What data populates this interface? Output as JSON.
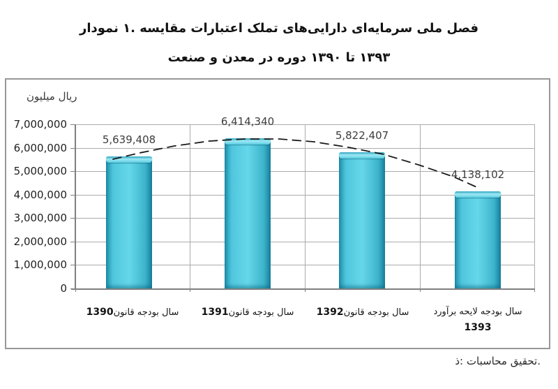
{
  "title": {
    "line1": "نمودار ۱. مقایسه اعتبارات تملک دارایی‌های سرمایه‌ای ملی فصل",
    "line2": "صنعت و معدن در دوره ۱۳۹۰ تا ۱۳۹۳"
  },
  "y_axis": {
    "unit_label": "میلیون ریال"
  },
  "x_axis": {
    "labels": [
      {
        "year": "1390",
        "text": "قانون بودجه سال"
      },
      {
        "year": "1391",
        "text": "قانون بودجه سال"
      },
      {
        "year": "1392",
        "text": "قانون بودجه سال"
      },
      {
        "year": "1393",
        "text": "برآورد لایحه بودجه سال"
      }
    ]
  },
  "footer": {
    "source_note": "ذ: محاسبات تحقیق."
  },
  "chart_data": {
    "type": "bar",
    "title": "نمودار ۱. مقایسه اعتبارات تملک دارایی‌های سرمایه‌ای ملی فصل صنعت و معدن در دوره ۱۳۹۰ تا ۱۳۹۳",
    "ylabel": "میلیون ریال",
    "xlabel": "",
    "ylim": [
      0,
      7000000
    ],
    "y_tick_step": 1000000,
    "grid": true,
    "legend": false,
    "bar_color": "#45c4dc",
    "categories": [
      "قانون بودجه سال 1390",
      "قانون بودجه سال 1391",
      "قانون بودجه سال 1392",
      "برآورد لایحه بودجه سال 1393"
    ],
    "values": [
      5639408,
      6414340,
      5822407,
      4138102
    ],
    "data_labels": [
      "5,639,408",
      "6,414,340",
      "5,822,407",
      "4,138,102"
    ],
    "y_ticks": [
      "7,000,000",
      "6,000,000",
      "5,000,000",
      "4,000,000",
      "3,000,000",
      "2,000,000",
      "1,000,000",
      "0"
    ],
    "trendline": {
      "type": "polynomial",
      "style": "dashed",
      "color": "#1a1a1a"
    }
  }
}
